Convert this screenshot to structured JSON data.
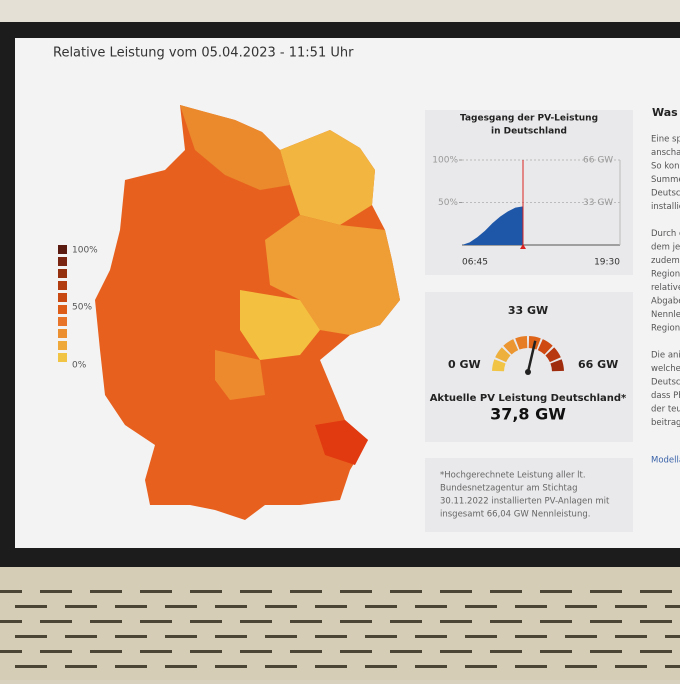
{
  "header": {
    "title": "Relative Leistung vom 05.04.2023 - 11:51 Uhr"
  },
  "legend": {
    "labels": [
      "100%",
      "50%",
      "0%"
    ]
  },
  "daily": {
    "title": [
      "Tagesgang der PV-Leistung",
      "in Deutschland"
    ],
    "ylim": [
      0,
      66
    ],
    "yticks": [
      {
        "value": 33,
        "label": "33 GW"
      },
      {
        "value": 66,
        "label": "66 GW"
      }
    ],
    "y2lim": [
      0,
      100
    ],
    "y2ticks": [
      {
        "value": 50,
        "label": "50%"
      },
      {
        "value": 100,
        "label": "100%"
      }
    ],
    "x_labels": [
      "06:45",
      "19:30"
    ],
    "values": [
      0,
      2,
      6,
      11,
      17,
      22,
      26,
      29,
      30
    ]
  },
  "gauge": {
    "min": {
      "value": 0,
      "label": "0 GW"
    },
    "mid": {
      "value": 33,
      "label": "33 GW"
    },
    "max": {
      "value": 66,
      "label": "66 GW"
    },
    "value": 37.8,
    "value_label": "37,8 GW",
    "caption": "Aktuelle PV Leistung Deutschland*"
  },
  "footnote": [
    "*Hochgerechnete Leistung aller lt.",
    "Bundesnetzagentur am Stichtag",
    "30.11.2022 installierten PV-Anlagen mit",
    "insgesamt 66,04 GW Nennleistung."
  ],
  "side": {
    "heading": "Was l",
    "lines": [
      "Eine sp",
      "anschau",
      "So kon",
      "Summe",
      "Deutsc",
      "installie",
      "",
      "Durch c",
      "dem je",
      "zudem",
      "Regione",
      "relative",
      "Abgabe",
      "Nennlei",
      "Region.",
      "",
      "Die ani",
      "welcher",
      "Deutsch",
      "dass Ph",
      "der teu",
      "beitrage"
    ],
    "link": "Modella"
  }
}
